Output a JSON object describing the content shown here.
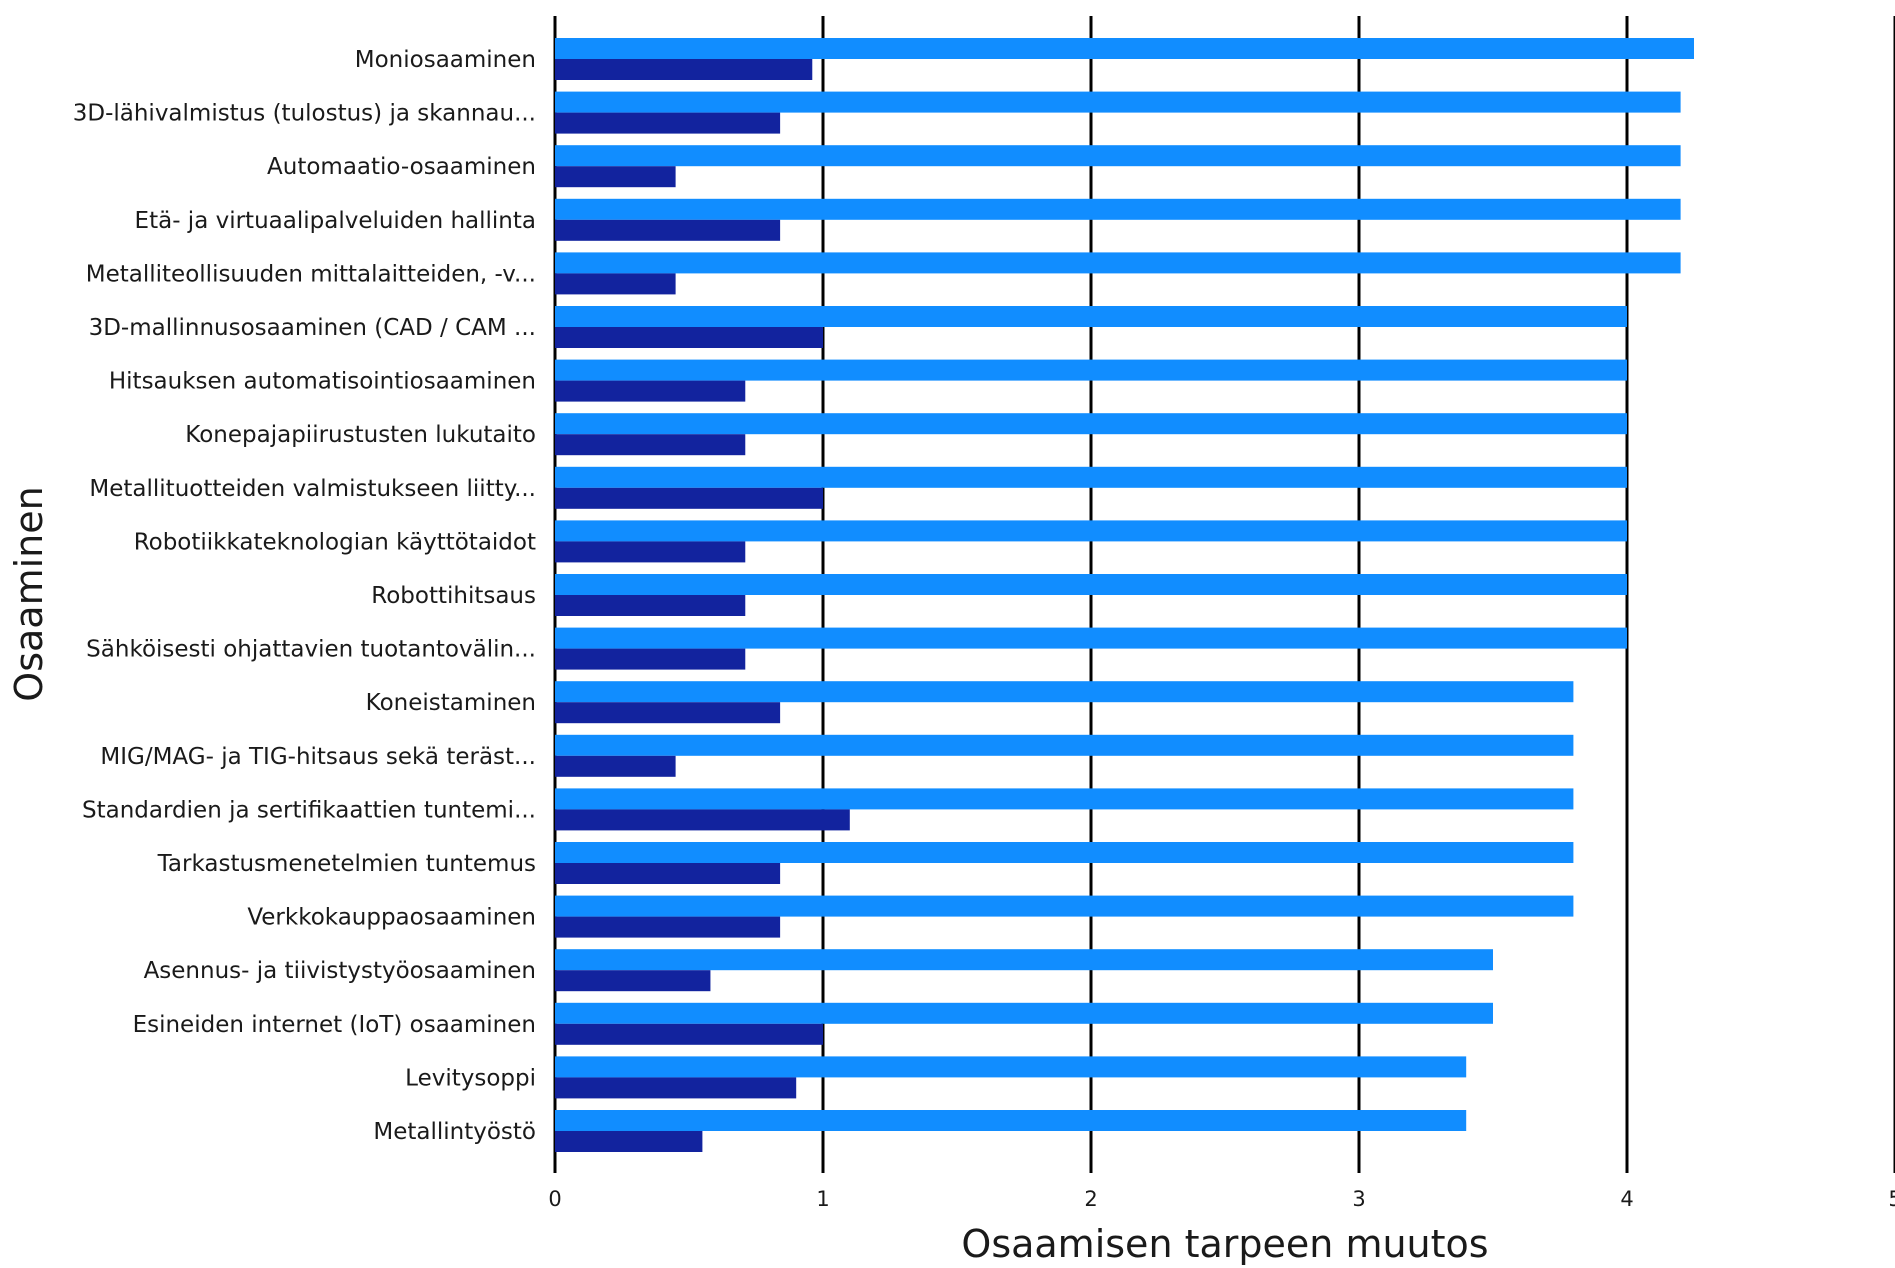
{
  "chart_data": {
    "type": "bar",
    "orientation": "horizontal",
    "xlabel": "Osaamisen tarpeen muutos",
    "ylabel": "Osaaminen",
    "xlim": [
      0,
      5
    ],
    "x_ticks": [
      "0",
      "1",
      "2",
      "3",
      "4",
      "5"
    ],
    "grid": "vertical",
    "categories": [
      "Moniosaaminen",
      "3D-lähivalmistus (tulostus) ja skannau...",
      "Automaatio-osaaminen",
      "Etä- ja virtuaalipalveluiden hallinta",
      "Metalliteollisuuden mittalaitteiden, -v...",
      "3D-mallinnusosaaminen (CAD / CAM ...",
      "Hitsauksen automatisointiosaaminen",
      "Konepajapiirustusten lukutaito",
      "Metallituotteiden valmistukseen liitty...",
      "Robotiikkateknologian käyttötaidot",
      "Robottihitsaus",
      "Sähköisesti ohjattavien tuotantovälin...",
      "Koneistaminen",
      "MIG/MAG- ja TIG-hitsaus sekä teräst...",
      "Standardien ja sertifikaattien tuntemi...",
      "Tarkastusmenetelmien tuntemus",
      "Verkkokauppaosaaminen",
      "Asennus- ja tiivistystyöosaaminen",
      "Esineiden internet (IoT) osaaminen",
      "Levitysoppi",
      "Metallintyöstö"
    ],
    "series": [
      {
        "color": "#118DFF",
        "values": [
          4.25,
          4.2,
          4.2,
          4.2,
          4.2,
          4.0,
          4.0,
          4.0,
          4.0,
          4.0,
          4.0,
          4.0,
          3.8,
          3.8,
          3.8,
          3.8,
          3.8,
          3.5,
          3.5,
          3.4,
          3.4
        ]
      },
      {
        "color": "#12239E",
        "values": [
          0.96,
          0.84,
          0.45,
          0.84,
          0.45,
          1.0,
          0.71,
          0.71,
          1.0,
          0.71,
          0.71,
          0.71,
          0.84,
          0.45,
          1.1,
          0.84,
          0.84,
          0.58,
          1.0,
          0.9,
          0.55
        ]
      }
    ]
  }
}
